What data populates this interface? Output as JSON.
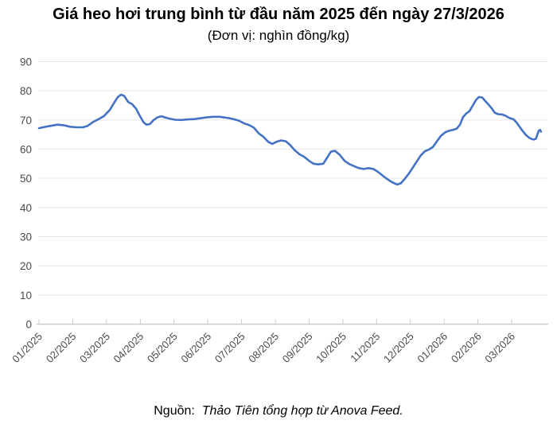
{
  "title": "Giá heo hơi trung bình từ đầu năm 2025 đến ngày 27/3/2026",
  "subtitle": "(Đơn vị: nghìn đồng/kg)",
  "source": {
    "prefix": "Nguồn:",
    "text": "Thảo Tiên tổng hợp từ Anova Feed."
  },
  "chart_data": {
    "type": "line",
    "title": "Giá heo hơi trung bình từ đầu năm 2025 đến ngày 27/3/2026",
    "subtitle": "(Đơn vị: nghìn đồng/kg)",
    "ylabel": "nghìn đồng/kg",
    "xlabel": "",
    "ylim": [
      0,
      90
    ],
    "y_ticks": [
      0,
      10,
      20,
      30,
      40,
      50,
      60,
      70,
      80,
      90
    ],
    "grid": "horizontal",
    "legend": "none",
    "x_tick_labels": [
      "01/2025",
      "02/2025",
      "03/2025",
      "04/2025",
      "05/2025",
      "06/2025",
      "07/2025",
      "08/2025",
      "09/2025",
      "10/2025",
      "11/2025",
      "12/2025",
      "01/2026",
      "02/2026",
      "03/2026"
    ],
    "x_unit": "month index from 01/2025 (fractional = day of month), data ends 27/3/2026",
    "colors": {
      "line": "#4472C4",
      "grid": "#E6E6E6",
      "axis": "#C9C9C9",
      "tick_label": "#4A4A4A"
    },
    "series": [
      {
        "name": "Giá heo hơi trung bình (nghìn đồng/kg)",
        "color": "#4472C4",
        "points": [
          [
            0,
            67.2
          ],
          [
            0.16,
            67.6
          ],
          [
            0.35,
            68.0
          ],
          [
            0.54,
            68.4
          ],
          [
            0.73,
            68.2
          ],
          [
            0.92,
            67.7
          ],
          [
            1.11,
            67.5
          ],
          [
            1.3,
            67.5
          ],
          [
            1.44,
            68.0
          ],
          [
            1.6,
            69.3
          ],
          [
            1.77,
            70.3
          ],
          [
            1.93,
            71.4
          ],
          [
            2.1,
            73.5
          ],
          [
            2.22,
            75.8
          ],
          [
            2.33,
            77.8
          ],
          [
            2.43,
            78.7
          ],
          [
            2.52,
            78.3
          ],
          [
            2.64,
            76.2
          ],
          [
            2.76,
            75.4
          ],
          [
            2.88,
            73.8
          ],
          [
            2.97,
            71.8
          ],
          [
            3.09,
            69.3
          ],
          [
            3.18,
            68.4
          ],
          [
            3.28,
            68.6
          ],
          [
            3.39,
            69.9
          ],
          [
            3.51,
            70.9
          ],
          [
            3.63,
            71.3
          ],
          [
            3.75,
            70.8
          ],
          [
            3.89,
            70.4
          ],
          [
            4.03,
            70.1
          ],
          [
            4.22,
            70.0
          ],
          [
            4.41,
            70.2
          ],
          [
            4.6,
            70.3
          ],
          [
            4.79,
            70.6
          ],
          [
            4.97,
            70.9
          ],
          [
            5.16,
            71.1
          ],
          [
            5.35,
            71.1
          ],
          [
            5.54,
            70.8
          ],
          [
            5.73,
            70.4
          ],
          [
            5.92,
            69.8
          ],
          [
            6.08,
            68.8
          ],
          [
            6.22,
            68.3
          ],
          [
            6.36,
            67.4
          ],
          [
            6.51,
            65.4
          ],
          [
            6.65,
            64.2
          ],
          [
            6.79,
            62.5
          ],
          [
            6.91,
            61.8
          ],
          [
            7.03,
            62.5
          ],
          [
            7.17,
            63.0
          ],
          [
            7.31,
            62.7
          ],
          [
            7.43,
            61.5
          ],
          [
            7.57,
            59.7
          ],
          [
            7.71,
            58.3
          ],
          [
            7.85,
            57.4
          ],
          [
            7.99,
            56.1
          ],
          [
            8.13,
            55.0
          ],
          [
            8.27,
            54.8
          ],
          [
            8.42,
            55.0
          ],
          [
            8.53,
            57.0
          ],
          [
            8.65,
            59.2
          ],
          [
            8.77,
            59.4
          ],
          [
            8.91,
            58.0
          ],
          [
            9.05,
            56.0
          ],
          [
            9.19,
            54.9
          ],
          [
            9.33,
            54.2
          ],
          [
            9.47,
            53.5
          ],
          [
            9.62,
            53.2
          ],
          [
            9.76,
            53.5
          ],
          [
            9.9,
            53.2
          ],
          [
            10.02,
            52.4
          ],
          [
            10.13,
            51.4
          ],
          [
            10.25,
            50.3
          ],
          [
            10.37,
            49.3
          ],
          [
            10.49,
            48.5
          ],
          [
            10.61,
            47.9
          ],
          [
            10.72,
            48.3
          ],
          [
            10.84,
            49.9
          ],
          [
            10.96,
            51.7
          ],
          [
            11.08,
            53.8
          ],
          [
            11.19,
            55.8
          ],
          [
            11.31,
            57.9
          ],
          [
            11.43,
            59.3
          ],
          [
            11.55,
            59.9
          ],
          [
            11.67,
            60.8
          ],
          [
            11.78,
            62.6
          ],
          [
            11.9,
            64.5
          ],
          [
            12.02,
            65.7
          ],
          [
            12.14,
            66.3
          ],
          [
            12.26,
            66.6
          ],
          [
            12.37,
            67.0
          ],
          [
            12.47,
            68.4
          ],
          [
            12.56,
            71.0
          ],
          [
            12.66,
            72.3
          ],
          [
            12.75,
            73.0
          ],
          [
            12.85,
            75.0
          ],
          [
            12.94,
            76.8
          ],
          [
            13.03,
            77.9
          ],
          [
            13.13,
            77.7
          ],
          [
            13.22,
            76.5
          ],
          [
            13.32,
            75.2
          ],
          [
            13.41,
            74.0
          ],
          [
            13.5,
            72.5
          ],
          [
            13.6,
            72.0
          ],
          [
            13.72,
            71.9
          ],
          [
            13.83,
            71.4
          ],
          [
            13.95,
            70.6
          ],
          [
            14.05,
            70.3
          ],
          [
            14.14,
            69.2
          ],
          [
            14.24,
            67.6
          ],
          [
            14.33,
            66.2
          ],
          [
            14.42,
            64.9
          ],
          [
            14.52,
            63.9
          ],
          [
            14.61,
            63.4
          ],
          [
            14.66,
            63.3
          ],
          [
            14.72,
            63.6
          ],
          [
            14.76,
            65.0
          ],
          [
            14.8,
            66.3
          ],
          [
            14.84,
            66.6
          ],
          [
            14.87,
            66.0
          ]
        ]
      }
    ]
  }
}
